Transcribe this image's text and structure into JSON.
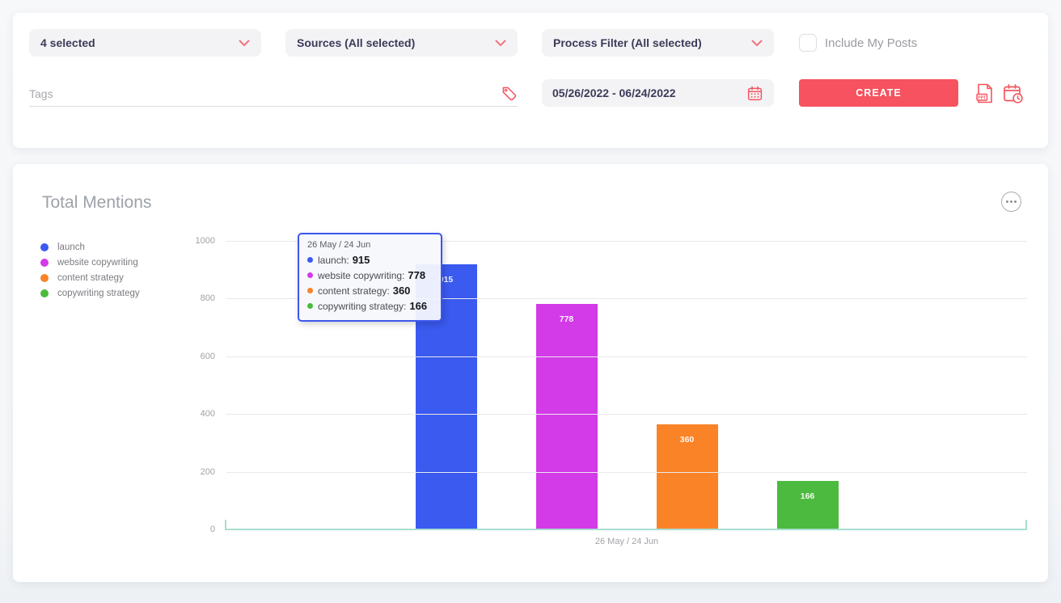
{
  "filter_bar": {
    "keywords_dropdown": "4 selected",
    "sources_dropdown": "Sources (All selected)",
    "process_dropdown": "Process Filter (All selected)",
    "include_my_posts_label": "Include My Posts",
    "include_my_posts_checked": false,
    "tags_placeholder": "Tags",
    "tags_value": "",
    "date_range": "05/26/2022 - 06/24/2022",
    "create_label": "CREATE",
    "ppt_icon_label": "PPT"
  },
  "chart_card": {
    "title": "Total Mentions"
  },
  "chart_data": {
    "type": "bar",
    "title": "Total Mentions",
    "categories": [
      "26 May / 24 Jun"
    ],
    "series": [
      {
        "name": "launch",
        "color": "#3a5af0",
        "values": [
          915
        ]
      },
      {
        "name": "website copywriting",
        "color": "#d33ae8",
        "values": [
          778
        ]
      },
      {
        "name": "content strategy",
        "color": "#fa8327",
        "values": [
          360
        ]
      },
      {
        "name": "copywriting strategy",
        "color": "#4cba3e",
        "values": [
          166
        ]
      }
    ],
    "ylim": [
      0,
      1000
    ],
    "yticks": [
      0,
      200,
      400,
      600,
      800,
      1000
    ],
    "xlabel": "",
    "ylabel": "",
    "grid": true,
    "legend_position": "left",
    "tooltip": {
      "visible": true,
      "category": "26 May / 24 Jun"
    }
  },
  "colors": {
    "accent_red": "#f6525f",
    "axis_teal": "#a9ded1",
    "tooltip_border": "#3d56ee",
    "card_background": "#ffffff"
  }
}
